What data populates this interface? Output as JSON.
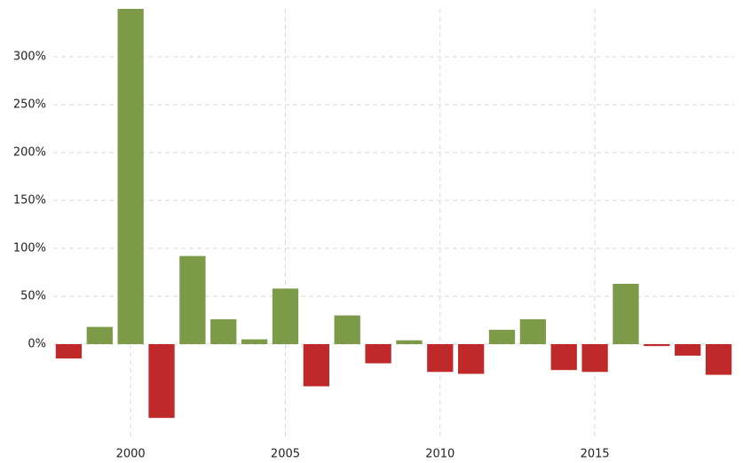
{
  "chart_data": {
    "type": "bar",
    "x": [
      1998,
      1999,
      2000,
      2001,
      2002,
      2003,
      2004,
      2005,
      2006,
      2007,
      2008,
      2009,
      2010,
      2011,
      2012,
      2013,
      2014,
      2015,
      2016,
      2017,
      2018,
      2019
    ],
    "values": [
      -15,
      18,
      350,
      -77,
      92,
      26,
      5,
      58,
      -44,
      30,
      -20,
      4,
      -29,
      -31,
      15,
      26,
      -27,
      -29,
      63,
      -2,
      -12,
      -32
    ],
    "positive_color": "#7d9a48",
    "negative_color": "#c0292a",
    "xlim": [
      1997.5,
      2019.5
    ],
    "xticks": [
      2000,
      2005,
      2010,
      2015
    ],
    "ylim": [
      -100,
      350
    ],
    "yticks": [
      {
        "value": 0,
        "label": "0%"
      },
      {
        "value": 50,
        "label": "50%"
      },
      {
        "value": 100,
        "label": "100%"
      },
      {
        "value": 150,
        "label": "150%"
      },
      {
        "value": 200,
        "label": "200%"
      },
      {
        "value": 250,
        "label": "250%"
      },
      {
        "value": 300,
        "label": "300%"
      }
    ],
    "grid": true
  }
}
